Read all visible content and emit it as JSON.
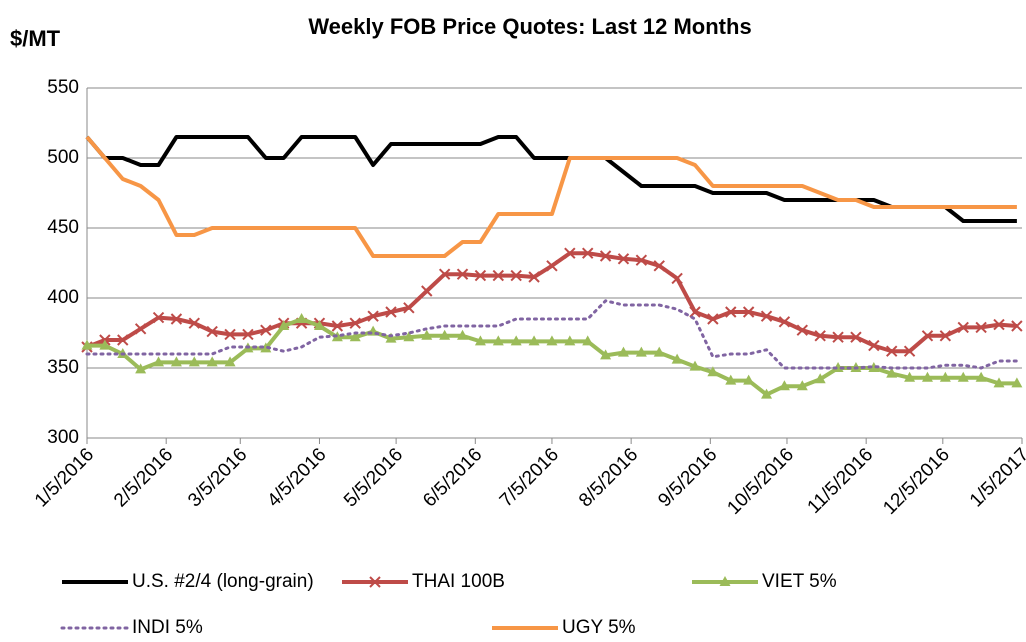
{
  "chart_data": {
    "type": "line",
    "title": "Weekly FOB Price Quotes:  Last 12 Months",
    "y_label": "$/MT",
    "x": [
      "1/5/2016",
      "1/12/2016",
      "1/19/2016",
      "1/26/2016",
      "2/2/2016",
      "2/9/2016",
      "2/16/2016",
      "2/23/2016",
      "3/1/2016",
      "3/8/2016",
      "3/15/2016",
      "3/22/2016",
      "3/29/2016",
      "4/5/2016",
      "4/12/2016",
      "4/19/2016",
      "4/26/2016",
      "5/3/2016",
      "5/10/2016",
      "5/17/2016",
      "5/24/2016",
      "5/31/2016",
      "6/7/2016",
      "6/14/2016",
      "6/21/2016",
      "6/28/2016",
      "7/5/2016",
      "7/12/2016",
      "7/19/2016",
      "7/26/2016",
      "8/2/2016",
      "8/9/2016",
      "8/16/2016",
      "8/23/2016",
      "8/30/2016",
      "9/6/2016",
      "9/13/2016",
      "9/20/2016",
      "9/27/2016",
      "10/4/2016",
      "10/11/2016",
      "10/18/2016",
      "10/25/2016",
      "11/1/2016",
      "11/8/2016",
      "11/15/2016",
      "11/22/2016",
      "11/29/2016",
      "12/6/2016",
      "12/13/2016",
      "12/20/2016",
      "12/27/2016",
      "1/3/2017"
    ],
    "xlim": [
      "1/5/2016",
      "1/5/2017"
    ],
    "xticks": [
      "1/5/2016",
      "2/5/2016",
      "3/5/2016",
      "4/5/2016",
      "5/5/2016",
      "6/5/2016",
      "7/5/2016",
      "8/5/2016",
      "9/5/2016",
      "10/5/2016",
      "11/5/2016",
      "12/5/2016",
      "1/5/2017"
    ],
    "ylim": [
      300,
      550
    ],
    "yticks": [
      300,
      350,
      400,
      450,
      500,
      550
    ],
    "grid": true,
    "legend": "bottom",
    "series": [
      {
        "name": "U.S. #2/4 (long-grain)",
        "color": "#000000",
        "marker": "none",
        "dashed": false,
        "values": [
          515,
          500,
          500,
          495,
          495,
          515,
          515,
          515,
          515,
          515,
          500,
          500,
          515,
          515,
          515,
          515,
          495,
          510,
          510,
          510,
          510,
          510,
          510,
          515,
          515,
          500,
          500,
          500,
          500,
          500,
          490,
          480,
          480,
          480,
          480,
          475,
          475,
          475,
          475,
          470,
          470,
          470,
          470,
          470,
          470,
          465,
          465,
          465,
          465,
          455,
          455,
          455,
          455
        ]
      },
      {
        "name": "THAI 100B",
        "color": "#be4b48",
        "marker": "x",
        "dashed": false,
        "values": [
          365,
          370,
          370,
          378,
          386,
          385,
          382,
          376,
          374,
          374,
          377,
          382,
          382,
          382,
          380,
          382,
          387,
          390,
          393,
          405,
          417,
          417,
          416,
          416,
          416,
          415,
          423,
          432,
          432,
          430,
          428,
          427,
          423,
          414,
          390,
          385,
          390,
          390,
          387,
          383,
          377,
          373,
          372,
          372,
          366,
          362,
          362,
          373,
          373,
          379,
          379,
          381,
          380
        ]
      },
      {
        "name": "VIET 5%",
        "color": "#9bbb59",
        "marker": "triangle",
        "dashed": false,
        "values": [
          366,
          366,
          360,
          349,
          354,
          354,
          354,
          354,
          354,
          364,
          364,
          380,
          385,
          380,
          372,
          372,
          376,
          371,
          372,
          373,
          373,
          373,
          369,
          369,
          369,
          369,
          369,
          369,
          369,
          359,
          361,
          361,
          361,
          356,
          351,
          347,
          341,
          341,
          331,
          337,
          337,
          342,
          350,
          350,
          350,
          346,
          343,
          343,
          343,
          343,
          343,
          339,
          339
        ]
      },
      {
        "name": "INDI 5%",
        "color": "#8064a2",
        "marker": "none",
        "dashed": true,
        "values": [
          360,
          360,
          360,
          360,
          360,
          360,
          360,
          360,
          365,
          365,
          365,
          362,
          365,
          372,
          373,
          375,
          375,
          373,
          375,
          378,
          380,
          380,
          380,
          380,
          385,
          385,
          385,
          385,
          385,
          398,
          395,
          395,
          395,
          392,
          385,
          358,
          360,
          360,
          363,
          350,
          350,
          350,
          350,
          350,
          351,
          350,
          350,
          350,
          352,
          352,
          350,
          355,
          355
        ]
      },
      {
        "name": "UGY 5%",
        "color": "#f79646",
        "marker": "none",
        "dashed": false,
        "values": [
          515,
          500,
          485,
          480,
          470,
          445,
          445,
          450,
          450,
          450,
          450,
          450,
          450,
          450,
          450,
          450,
          430,
          430,
          430,
          430,
          430,
          440,
          440,
          460,
          460,
          460,
          460,
          500,
          500,
          500,
          500,
          500,
          500,
          500,
          495,
          480,
          480,
          480,
          480,
          480,
          480,
          475,
          470,
          470,
          465,
          465,
          465,
          465,
          465,
          465,
          465,
          465,
          465
        ]
      }
    ]
  }
}
